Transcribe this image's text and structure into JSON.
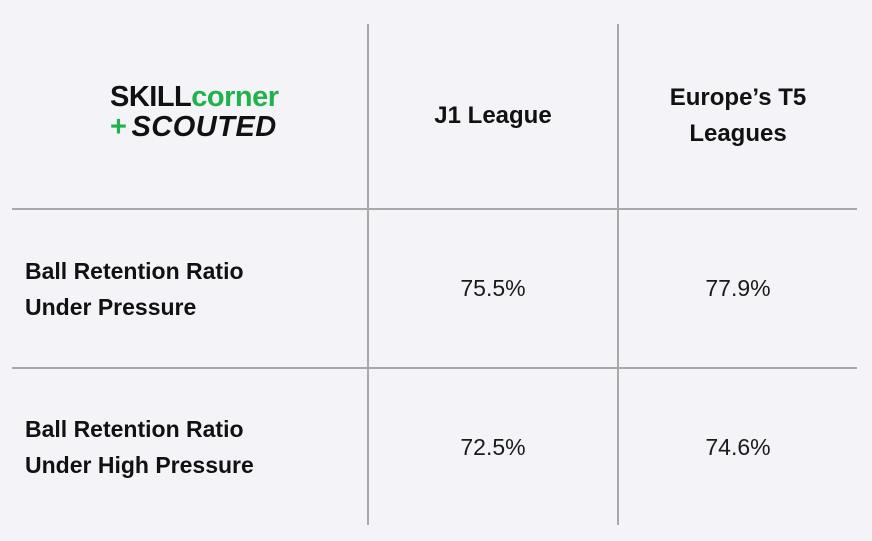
{
  "logo": {
    "brand_part1": "SKILL",
    "brand_part2": "corner",
    "plus": "+",
    "sub_brand": "SCOUTED",
    "colors": {
      "accent": "#22b14c",
      "dark": "#111111"
    }
  },
  "chart_data": {
    "type": "table",
    "columns": [
      "J1 League",
      "Europe’s T5 Leagues"
    ],
    "rows": [
      {
        "label": "Ball Retention Ratio Under Pressure",
        "values": [
          "75.5%",
          "77.9%"
        ]
      },
      {
        "label": "Ball Retention Ratio Under High Pressure",
        "values": [
          "72.5%",
          "74.6%"
        ]
      }
    ]
  },
  "colors": {
    "background": "#f4f3f7",
    "grid": "#a8a8a8",
    "text": "#111111"
  }
}
